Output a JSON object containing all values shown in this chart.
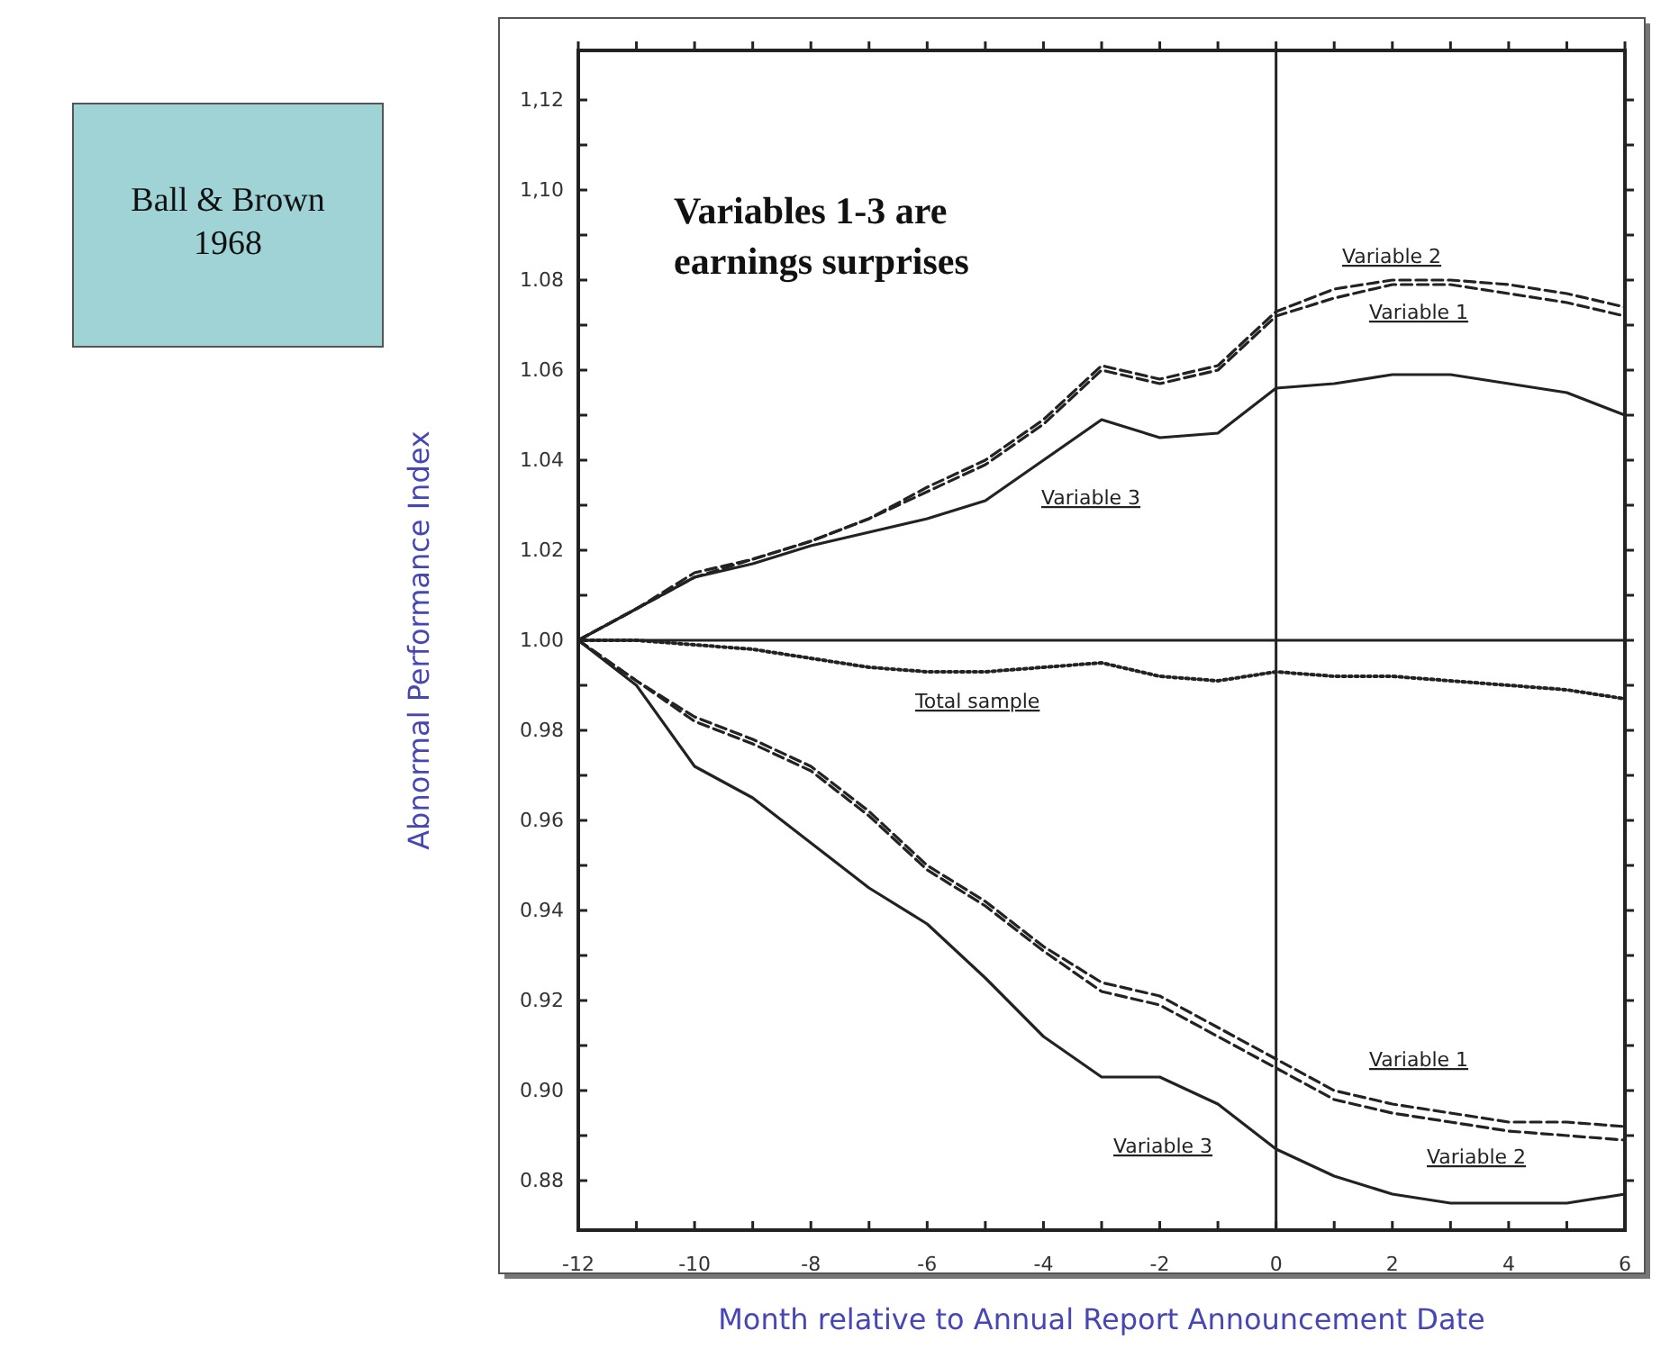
{
  "chart_data": {
    "type": "line",
    "xlabel": "Month relative to Annual Report Announcement Date",
    "ylabel": "Abnormal Performance Index",
    "x": [
      -12,
      -11,
      -10,
      -9,
      -8,
      -7,
      -6,
      -5,
      -4,
      -3,
      -2,
      -1,
      0,
      1,
      2,
      3,
      4,
      5,
      6
    ],
    "series": [
      {
        "name": "Variable 1",
        "color": "#222222",
        "line_style": "dashed",
        "values": [
          1.0,
          1.007,
          1.015,
          1.018,
          1.022,
          1.027,
          1.033,
          1.039,
          1.048,
          1.06,
          1.057,
          1.06,
          1.072,
          1.076,
          1.079,
          1.079,
          1.077,
          1.075,
          1.072
        ]
      },
      {
        "name": "Variable 2",
        "color": "#222222",
        "line_style": "dashed",
        "values": [
          1.0,
          1.007,
          1.014,
          1.018,
          1.022,
          1.027,
          1.034,
          1.04,
          1.049,
          1.061,
          1.058,
          1.061,
          1.073,
          1.078,
          1.08,
          1.08,
          1.079,
          1.077,
          1.074
        ]
      },
      {
        "name": "Variable 3",
        "color": "#222222",
        "line_style": "solid",
        "values": [
          1.0,
          1.007,
          1.014,
          1.017,
          1.021,
          1.024,
          1.027,
          1.031,
          1.04,
          1.049,
          1.045,
          1.046,
          1.056,
          1.057,
          1.059,
          1.059,
          1.057,
          1.055,
          1.05
        ]
      },
      {
        "name": "Total sample",
        "color": "#222222",
        "line_style": "dotted",
        "values": [
          1.0,
          1.0,
          0.999,
          0.998,
          0.996,
          0.994,
          0.993,
          0.993,
          0.994,
          0.995,
          0.992,
          0.991,
          0.993,
          0.992,
          0.992,
          0.991,
          0.99,
          0.989,
          0.987
        ]
      },
      {
        "name": "Variable 1",
        "color": "#222222",
        "line_style": "dashed",
        "values": [
          1.0,
          0.991,
          0.983,
          0.978,
          0.972,
          0.962,
          0.95,
          0.942,
          0.932,
          0.924,
          0.921,
          0.914,
          0.907,
          0.9,
          0.897,
          0.895,
          0.893,
          0.893,
          0.892
        ]
      },
      {
        "name": "Variable 2",
        "color": "#222222",
        "line_style": "dashed",
        "values": [
          1.0,
          0.991,
          0.982,
          0.977,
          0.971,
          0.961,
          0.949,
          0.941,
          0.931,
          0.922,
          0.919,
          0.912,
          0.905,
          0.898,
          0.895,
          0.893,
          0.891,
          0.89,
          0.889
        ]
      },
      {
        "name": "Variable 3",
        "color": "#222222",
        "line_style": "solid",
        "values": [
          1.0,
          0.99,
          0.972,
          0.965,
          0.955,
          0.945,
          0.937,
          0.925,
          0.912,
          0.903,
          0.903,
          0.897,
          0.887,
          0.881,
          0.877,
          0.875,
          0.875,
          0.875,
          0.877
        ]
      }
    ],
    "xlim": [
      -12,
      6
    ],
    "xticks": [
      -12,
      {
        "value": -11,
        "label": null
      },
      -10,
      {
        "value": -9,
        "label": null
      },
      -8,
      {
        "value": -7,
        "label": null
      },
      -6,
      {
        "value": -5,
        "label": null
      },
      -4,
      {
        "value": -3,
        "label": null
      },
      -2,
      {
        "value": -1,
        "label": null
      },
      0,
      {
        "value": 1,
        "label": null
      },
      2,
      {
        "value": 3,
        "label": null
      },
      4,
      {
        "value": 5,
        "label": null
      },
      6
    ],
    "ylim": [
      0.869,
      1.131
    ],
    "yticks": [
      {
        "value": 0.88,
        "label": "0.88"
      },
      {
        "value": 0.89,
        "label": null
      },
      {
        "value": 0.9,
        "label": "0.90"
      },
      {
        "value": 0.91,
        "label": null
      },
      {
        "value": 0.92,
        "label": "0.92"
      },
      {
        "value": 0.93,
        "label": null
      },
      {
        "value": 0.94,
        "label": "0.94"
      },
      {
        "value": 0.95,
        "label": null
      },
      {
        "value": 0.96,
        "label": "0.96"
      },
      {
        "value": 0.97,
        "label": null
      },
      {
        "value": 0.98,
        "label": "0.98"
      },
      {
        "value": 0.99,
        "label": null
      },
      {
        "value": 1.0,
        "label": "1.00"
      },
      {
        "value": 1.01,
        "label": null
      },
      {
        "value": 1.02,
        "label": "1.02"
      },
      {
        "value": 1.03,
        "label": null
      },
      {
        "value": 1.04,
        "label": "1.04"
      },
      {
        "value": 1.05,
        "label": null
      },
      {
        "value": 1.06,
        "label": "1.06"
      },
      {
        "value": 1.07,
        "label": null
      },
      {
        "value": 1.08,
        "label": "1.08"
      },
      {
        "value": 1.09,
        "label": null
      },
      {
        "value": 1.1,
        "label": "1,10"
      },
      {
        "value": 1.11,
        "label": null
      },
      {
        "value": 1.12,
        "label": "1,12"
      }
    ],
    "ref_lines": [
      {
        "axis": "y",
        "value": 1.0,
        "color": "#222222"
      },
      {
        "axis": "x",
        "value": 0,
        "color": "#222222"
      }
    ],
    "annotations": [
      "Variables 1-3 are earnings surprises",
      "Ball & Brown 1968"
    ],
    "grid": false,
    "marker": "none"
  }
}
